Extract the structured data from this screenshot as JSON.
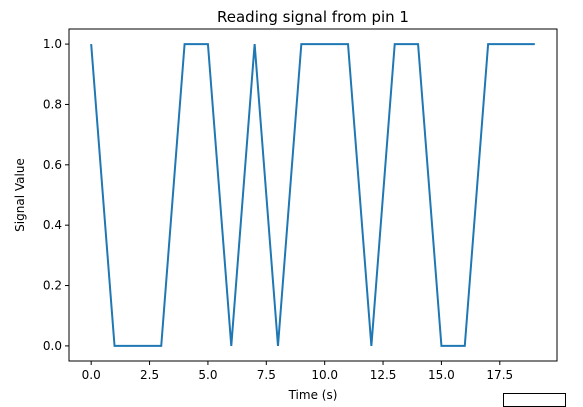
{
  "chart_data": {
    "type": "line",
    "title": "Reading signal from pin 1",
    "xlabel": "Time (s)",
    "ylabel": "Signal Value",
    "xlim": [
      -0.95,
      19.95
    ],
    "ylim": [
      -0.05,
      1.05
    ],
    "grid": false,
    "x_ticks": [
      0.0,
      2.5,
      5.0,
      7.5,
      10.0,
      12.5,
      15.0,
      17.5
    ],
    "x_tick_labels": [
      "0.0",
      "2.5",
      "5.0",
      "7.5",
      "10.0",
      "12.5",
      "15.0",
      "17.5"
    ],
    "y_ticks": [
      0.0,
      0.2,
      0.4,
      0.6,
      0.8,
      1.0
    ],
    "y_tick_labels": [
      "0.0",
      "0.2",
      "0.4",
      "0.6",
      "0.8",
      "1.0"
    ],
    "series": [
      {
        "color": "#1f77b4",
        "x": [
          0,
          1,
          2,
          3,
          4,
          5,
          6,
          7,
          8,
          9,
          10,
          11,
          12,
          13,
          14,
          15,
          16,
          17,
          18,
          19
        ],
        "y": [
          1,
          0,
          0,
          0,
          1,
          1,
          0,
          1,
          0,
          1,
          1,
          1,
          0,
          1,
          1,
          0,
          0,
          1,
          1,
          1
        ]
      }
    ]
  }
}
